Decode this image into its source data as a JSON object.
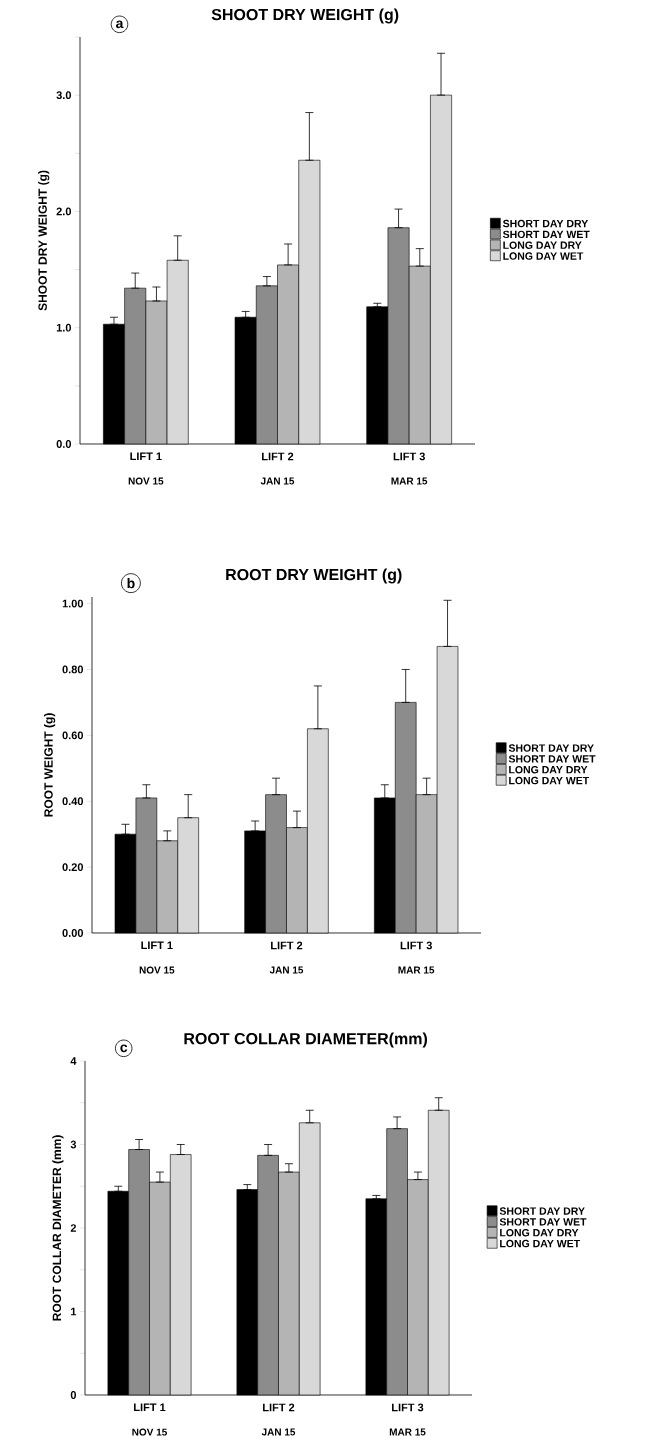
{
  "chart_data": [
    {
      "type": "bar",
      "title": "SHOOT DRY WEIGHT (g)",
      "ylabel": "SHOOT DRY WEIGHT (g)",
      "categories": [
        "LIFT 1",
        "LIFT 2",
        "LIFT 3"
      ],
      "annotations": [
        "a",
        "NOV 15",
        "JAN 15",
        "MAR 15"
      ],
      "ylim": [
        0,
        3.5
      ],
      "yticks": [
        {
          "value": 0,
          "label": "0.0"
        },
        {
          "value": 0.5,
          "label": null
        },
        {
          "value": 1,
          "label": "1.0"
        },
        {
          "value": 1.5,
          "label": null
        },
        {
          "value": 2,
          "label": "2.0"
        },
        {
          "value": 2.5,
          "label": null
        },
        {
          "value": 3,
          "label": "3.0"
        },
        {
          "value": 3.5,
          "label": null
        }
      ],
      "legend": "right",
      "series": [
        {
          "name": "SHORT DAY DRY",
          "color": "#000000",
          "values": [
            1.03,
            1.09,
            1.18
          ],
          "errors": [
            [
              1.03,
              1.09
            ],
            [
              1.09,
              1.14
            ],
            [
              1.18,
              1.21
            ]
          ]
        },
        {
          "name": "SHORT DAY WET",
          "color": "#8c8c8c",
          "values": [
            1.34,
            1.36,
            1.86
          ],
          "errors": [
            [
              1.34,
              1.47
            ],
            [
              1.36,
              1.44
            ],
            [
              1.86,
              2.02
            ]
          ]
        },
        {
          "name": "LONG DAY DRY",
          "color": "#b4b4b4",
          "values": [
            1.23,
            1.54,
            1.53
          ],
          "errors": [
            [
              1.23,
              1.35
            ],
            [
              1.54,
              1.72
            ],
            [
              1.53,
              1.68
            ]
          ]
        },
        {
          "name": "LONG DAY WET",
          "color": "#d8d8d8",
          "values": [
            1.58,
            2.44,
            3.0
          ],
          "errors": [
            [
              1.58,
              1.79
            ],
            [
              2.44,
              2.85
            ],
            [
              3.0,
              3.36
            ]
          ]
        }
      ]
    },
    {
      "type": "bar",
      "title": "ROOT DRY WEIGHT (g)",
      "ylabel": "ROOT WEIGHT (g)",
      "categories": [
        "LIFT 1",
        "LIFT 2",
        "LIFT 3"
      ],
      "annotations": [
        "b",
        "NOV 15",
        "JAN 15",
        "MAR 15"
      ],
      "ylim": [
        0,
        1.02
      ],
      "yticks": [
        {
          "value": 0,
          "label": "0.00"
        },
        {
          "value": 0.2,
          "label": "0.20"
        },
        {
          "value": 0.4,
          "label": "0.40"
        },
        {
          "value": 0.6,
          "label": "0.60"
        },
        {
          "value": 0.8,
          "label": "0.80"
        },
        {
          "value": 1,
          "label": "1.00"
        }
      ],
      "legend": "right",
      "series": [
        {
          "name": "SHORT DAY DRY",
          "color": "#000000",
          "values": [
            0.3,
            0.31,
            0.41
          ],
          "errors": [
            [
              0.3,
              0.33
            ],
            [
              0.31,
              0.34
            ],
            [
              0.41,
              0.45
            ]
          ]
        },
        {
          "name": "SHORT DAY WET",
          "color": "#8c8c8c",
          "values": [
            0.41,
            0.42,
            0.7
          ],
          "errors": [
            [
              0.41,
              0.45
            ],
            [
              0.42,
              0.47
            ],
            [
              0.7,
              0.8
            ]
          ]
        },
        {
          "name": "LONG DAY DRY",
          "color": "#b4b4b4",
          "values": [
            0.28,
            0.32,
            0.42
          ],
          "errors": [
            [
              0.28,
              0.31
            ],
            [
              0.32,
              0.37
            ],
            [
              0.42,
              0.47
            ]
          ]
        },
        {
          "name": "LONG DAY WET",
          "color": "#d8d8d8",
          "values": [
            0.35,
            0.62,
            0.87
          ],
          "errors": [
            [
              0.35,
              0.42
            ],
            [
              0.62,
              0.75
            ],
            [
              0.87,
              1.01
            ]
          ]
        }
      ]
    },
    {
      "type": "bar",
      "title": "ROOT COLLAR DIAMETER(mm)",
      "ylabel": "ROOT COLLAR DIAMETER (mm)",
      "categories": [
        "LIFT 1",
        "LIFT 2",
        "LIFT 3"
      ],
      "annotations": [
        "c",
        "NOV 15",
        "JAN 15",
        "MAR 15"
      ],
      "ylim": [
        0,
        4
      ],
      "yticks": [
        0,
        {
          "value": 0.5,
          "label": null
        },
        1,
        {
          "value": 1.5,
          "label": null
        },
        2,
        {
          "value": 2.5,
          "label": null
        },
        3,
        {
          "value": 3.5,
          "label": null
        },
        4
      ],
      "legend": "right",
      "series": [
        {
          "name": "SHORT DAY DRY",
          "color": "#000000",
          "values": [
            2.44,
            2.46,
            2.35
          ],
          "errors": [
            [
              2.44,
              2.5
            ],
            [
              2.46,
              2.52
            ],
            [
              2.35,
              2.39
            ]
          ]
        },
        {
          "name": "SHORT DAY WET",
          "color": "#8c8c8c",
          "values": [
            2.94,
            2.87,
            3.19
          ],
          "errors": [
            [
              2.94,
              3.06
            ],
            [
              2.87,
              3.0
            ],
            [
              3.19,
              3.33
            ]
          ]
        },
        {
          "name": "LONG DAY DRY",
          "color": "#b4b4b4",
          "values": [
            2.55,
            2.67,
            2.58
          ],
          "errors": [
            [
              2.55,
              2.67
            ],
            [
              2.67,
              2.77
            ],
            [
              2.58,
              2.67
            ]
          ]
        },
        {
          "name": "LONG DAY WET",
          "color": "#d8d8d8",
          "values": [
            2.88,
            3.26,
            3.41
          ],
          "errors": [
            [
              2.88,
              3.0
            ],
            [
              3.26,
              3.41
            ],
            [
              3.41,
              3.56
            ]
          ]
        }
      ]
    }
  ]
}
